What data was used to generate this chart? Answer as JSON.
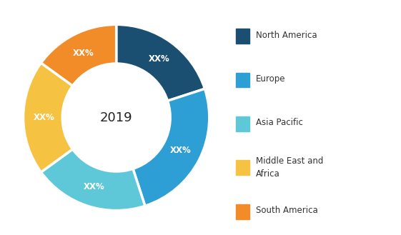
{
  "labels": [
    "North America",
    "Europe",
    "Asia Pacific",
    "Middle East and\nAfrica",
    "South America"
  ],
  "values": [
    20,
    25,
    20,
    20,
    15
  ],
  "colors": [
    "#1b4f72",
    "#2e9fd4",
    "#5ec8d8",
    "#f5c242",
    "#f28c28"
  ],
  "center_text": "2019",
  "label_text": "XX%",
  "legend_labels": [
    "North America",
    "Europe",
    "Asia Pacific",
    "Middle East and\nAfrica",
    "South America"
  ],
  "legend_colors": [
    "#1b4f72",
    "#2e9fd4",
    "#5ec8d8",
    "#f5c242",
    "#f28c28"
  ],
  "figsize": [
    5.61,
    3.29
  ],
  "dpi": 100
}
